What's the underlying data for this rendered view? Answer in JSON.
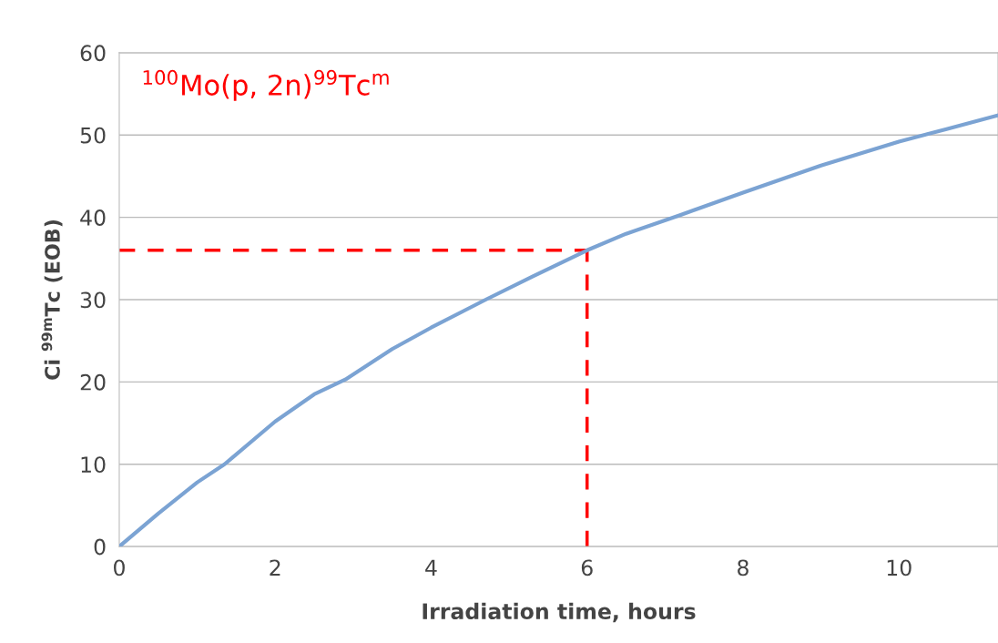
{
  "chart_data": {
    "type": "line",
    "xlabel": "Irradiation time, hours",
    "ylabel": "Ci $^{99m}$Tc (EOB)",
    "x": [
      0,
      0.5,
      1,
      1.35,
      2,
      2.5,
      2.9,
      3.5,
      4,
      4.7,
      5.3,
      6,
      6.5,
      7.2,
      8,
      9,
      10,
      10.6,
      11.27
    ],
    "series": [
      {
        "color": "#7ba3d3",
        "values": [
          0,
          4,
          7.8,
          10,
          15.2,
          18.5,
          20.3,
          24,
          26.6,
          30,
          32.8,
          36,
          38,
          40.3,
          43,
          46.3,
          49.2,
          50.7,
          52.4
        ]
      }
    ],
    "xlim": [
      0,
      11.27
    ],
    "xticks": [
      0,
      2,
      4,
      6,
      8,
      10
    ],
    "ylim": [
      0,
      60
    ],
    "yticks": [
      0,
      10,
      20,
      30,
      40,
      50,
      60
    ],
    "grid": "y",
    "marker": "none",
    "line_style": "solid",
    "ref_lines": [
      {
        "axis": "y",
        "value": 36,
        "color": "#ff0000",
        "line_style": "dashed"
      },
      {
        "axis": "x",
        "value": 6,
        "color": "#ff0000",
        "line_style": "dashed"
      }
    ],
    "annotations": [
      "$^{100}$Mo(p, 2n)$^{99}$Tc$^{m}$"
    ]
  }
}
